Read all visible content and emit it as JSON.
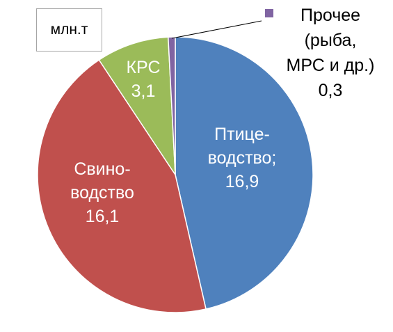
{
  "unit_label": "млн.т",
  "colors": {
    "poultry": "#4f81bd",
    "pig": "#c0504d",
    "cattle": "#9bbb59",
    "other": "#8064a2"
  },
  "chart_data": {
    "type": "pie",
    "title": "",
    "unit": "млн.т",
    "slices": [
      {
        "key": "poultry",
        "label_lines": [
          "Птице-",
          "водство;",
          "16,9"
        ],
        "value": 16.9
      },
      {
        "key": "pig",
        "label_lines": [
          "Свино-",
          "водство",
          "16,1"
        ],
        "value": 16.1
      },
      {
        "key": "cattle",
        "label_lines": [
          "КРС",
          "3,1"
        ],
        "value": 3.1
      },
      {
        "key": "other",
        "label_lines": [
          "Прочее",
          "(рыба,",
          "МРС и др.)",
          "0,3"
        ],
        "value": 0.3
      }
    ]
  }
}
